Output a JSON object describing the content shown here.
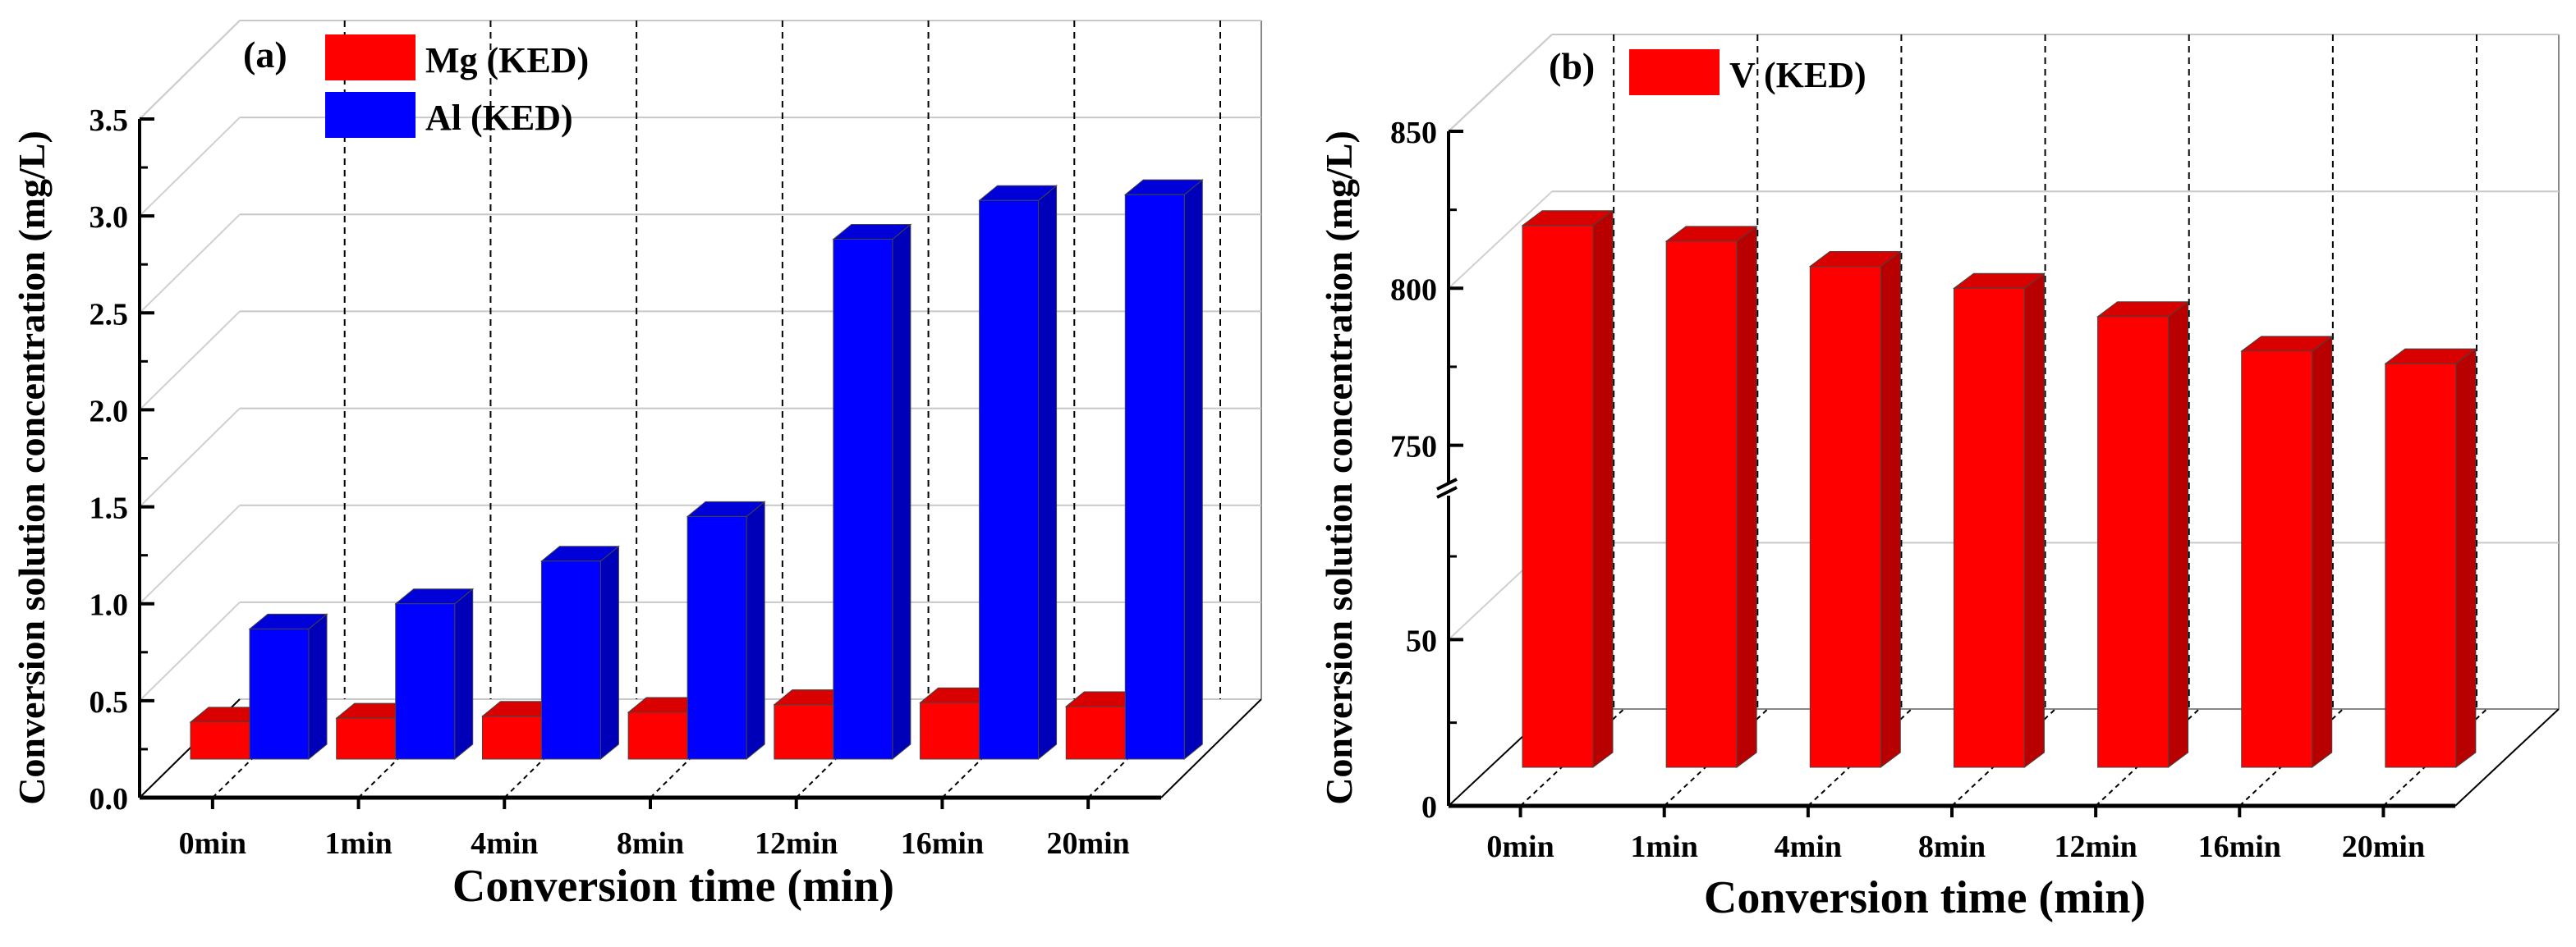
{
  "chart_data": [
    {
      "type": "bar",
      "panel_label": "(a)",
      "title": "",
      "xlabel": "Conversion time (min)",
      "ylabel": "Conversion solution concentration (mg/L)",
      "categories": [
        "0min",
        "1min",
        "4min",
        "8min",
        "12min",
        "16min",
        "20min"
      ],
      "series": [
        {
          "name": "Mg (KED)",
          "color": "#ff0000",
          "values": [
            0.39,
            0.41,
            0.42,
            0.44,
            0.48,
            0.49,
            0.47
          ]
        },
        {
          "name": "Al (KED)",
          "color": "#0000ff",
          "values": [
            0.87,
            1.0,
            1.22,
            1.45,
            2.88,
            3.08,
            3.11
          ]
        }
      ],
      "ylim": [
        0,
        3.5
      ],
      "yticks": [
        "0.0",
        "0.5",
        "1.0",
        "1.5",
        "2.0",
        "2.5",
        "3.0",
        "3.5"
      ],
      "legend_position": "top-left",
      "grid": true
    },
    {
      "type": "bar",
      "panel_label": "(b)",
      "title": "",
      "xlabel": "Conversion time (min)",
      "ylabel": "Conversion solution concentration (mg/L)",
      "categories": [
        "0min",
        "1min",
        "4min",
        "8min",
        "12min",
        "16min",
        "20min"
      ],
      "series": [
        {
          "name": "V (KED)",
          "color": "#ff0000",
          "values": [
            820,
            815,
            807,
            800,
            791,
            780,
            776
          ]
        }
      ],
      "ylim": [
        0,
        850
      ],
      "axis_break": [
        75,
        735
      ],
      "yticks": [
        "0",
        "50",
        "750",
        "800",
        "850"
      ],
      "legend_position": "top-left",
      "grid": true
    }
  ]
}
